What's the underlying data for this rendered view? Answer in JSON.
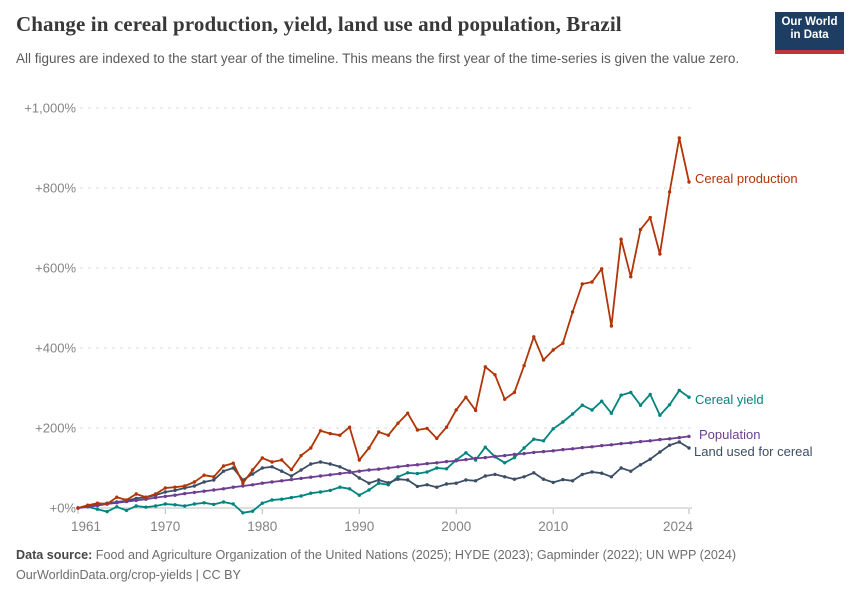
{
  "header": {
    "title": "Change in cereal production, yield, land use and population, Brazil",
    "subtitle": "All figures are indexed to the start year of the timeline. This means the first year of the time-series is given the value zero.",
    "logo_line1": "Our World",
    "logo_line2": "in Data",
    "logo_bg_color": "#1d3d63",
    "logo_accent_color": "#c23335"
  },
  "footer": {
    "source_label": "Data source:",
    "source_text": " Food and Agriculture Organization of the United Nations (2025); HYDE (2023); Gapminder (2022); UN WPP (2024)",
    "link": "OurWorldinData.org/crop-yields",
    "license": " | CC BY"
  },
  "chart_data": {
    "type": "line",
    "title": "Change in cereal production, yield, land use and population, Brazil",
    "xlabel": "",
    "ylabel": "",
    "unit": "% change since 1961",
    "ylim": [
      -20,
      1000
    ],
    "grid": "dashed horizontal gridlines, solid zero line",
    "legend_position": "end-of-line labels at right",
    "years": [
      1961,
      1962,
      1963,
      1964,
      1965,
      1966,
      1967,
      1968,
      1969,
      1970,
      1971,
      1972,
      1973,
      1974,
      1975,
      1976,
      1977,
      1978,
      1979,
      1980,
      1981,
      1982,
      1983,
      1984,
      1985,
      1986,
      1987,
      1988,
      1989,
      1990,
      1991,
      1992,
      1993,
      1994,
      1995,
      1996,
      1997,
      1998,
      1999,
      2000,
      2001,
      2002,
      2003,
      2004,
      2005,
      2006,
      2007,
      2008,
      2009,
      2010,
      2011,
      2012,
      2013,
      2014,
      2015,
      2016,
      2017,
      2018,
      2019,
      2020,
      2021,
      2022,
      2023,
      2024
    ],
    "x_axis": {
      "ticks": [
        {
          "value": 1961,
          "label": "1961"
        },
        {
          "value": 1970,
          "label": "1970"
        },
        {
          "value": 1980,
          "label": "1980"
        },
        {
          "value": 1990,
          "label": "1990"
        },
        {
          "value": 2000,
          "label": "2000"
        },
        {
          "value": 2010,
          "label": "2010"
        },
        {
          "value": 2024,
          "label": "2024"
        }
      ]
    },
    "y_axis": {
      "ticks": [
        {
          "value": 0,
          "label": "+0%"
        },
        {
          "value": 200,
          "label": "+200%"
        },
        {
          "value": 400,
          "label": "+400%"
        },
        {
          "value": 600,
          "label": "+600%"
        },
        {
          "value": 800,
          "label": "+800%"
        },
        {
          "value": 1000,
          "label": "+1,000%"
        }
      ]
    },
    "series": [
      {
        "name": "Cereal production",
        "color": "#B13507",
        "values": [
          0,
          7,
          12,
          10,
          27,
          20,
          35,
          27,
          35,
          50,
          52,
          55,
          65,
          82,
          78,
          105,
          112,
          62,
          95,
          125,
          115,
          120,
          96,
          131,
          150,
          193,
          186,
          182,
          202,
          120,
          150,
          190,
          182,
          212,
          237,
          195,
          199,
          174,
          202,
          245,
          277,
          244,
          353,
          333,
          272,
          289,
          356,
          428,
          370,
          395,
          412,
          490,
          560,
          565,
          598,
          455,
          672,
          578,
          696,
          726,
          635,
          790,
          925,
          815
        ]
      },
      {
        "name": "Cereal yield",
        "color": "#00847E",
        "values": [
          0,
          3,
          -3,
          -9,
          3,
          -6,
          5,
          2,
          5,
          10,
          8,
          5,
          10,
          13,
          9,
          15,
          10,
          -12,
          -8,
          12,
          20,
          22,
          26,
          30,
          37,
          40,
          44,
          52,
          48,
          32,
          45,
          62,
          58,
          78,
          88,
          86,
          90,
          100,
          98,
          120,
          138,
          120,
          152,
          128,
          113,
          126,
          150,
          172,
          168,
          198,
          215,
          235,
          257,
          245,
          267,
          237,
          282,
          289,
          257,
          284,
          232,
          258,
          294,
          277
        ]
      },
      {
        "name": "Population",
        "color": "#6D3E91",
        "values": [
          0,
          3,
          6,
          10,
          13,
          16,
          19,
          22,
          26,
          29,
          32,
          36,
          39,
          42,
          45,
          48,
          52,
          55,
          58,
          62,
          65,
          68,
          71,
          74,
          77,
          80,
          83,
          86,
          89,
          92,
          95,
          97,
          100,
          103,
          106,
          108,
          111,
          113,
          116,
          118,
          121,
          124,
          126,
          129,
          131,
          134,
          136,
          139,
          141,
          143,
          146,
          148,
          151,
          153,
          156,
          158,
          161,
          163,
          166,
          168,
          171,
          173,
          176,
          179
        ]
      },
      {
        "name": "Land used for cereal",
        "color": "#3C4E66",
        "values": [
          0,
          4,
          8,
          12,
          15,
          18,
          24,
          27,
          32,
          40,
          44,
          50,
          55,
          65,
          70,
          92,
          100,
          70,
          85,
          100,
          103,
          92,
          80,
          95,
          110,
          115,
          110,
          103,
          92,
          75,
          62,
          70,
          63,
          72,
          70,
          54,
          58,
          52,
          60,
          62,
          70,
          68,
          80,
          84,
          78,
          72,
          78,
          88,
          72,
          64,
          71,
          68,
          84,
          90,
          87,
          78,
          100,
          92,
          108,
          122,
          140,
          157,
          165,
          150
        ]
      }
    ]
  }
}
